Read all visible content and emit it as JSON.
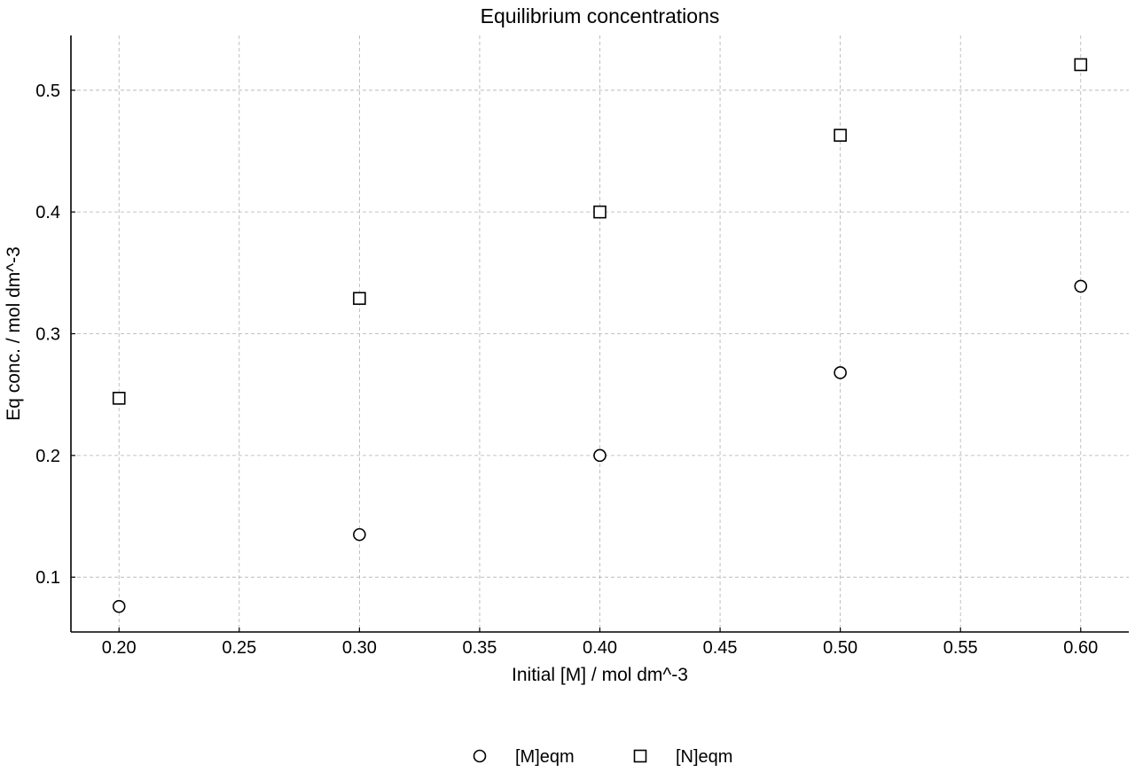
{
  "chart_data": {
    "type": "scatter",
    "title": "Equilibrium concentrations",
    "xlabel": "Initial [M] / mol dm^-3",
    "ylabel": "Eq conc. / mol dm^-3",
    "xlim": [
      0.18,
      0.62
    ],
    "ylim": [
      0.055,
      0.545
    ],
    "x_ticks": [
      "0.20",
      "0.25",
      "0.30",
      "0.35",
      "0.40",
      "0.45",
      "0.50",
      "0.55",
      "0.60"
    ],
    "y_ticks": [
      "0.1",
      "0.2",
      "0.3",
      "0.4",
      "0.5"
    ],
    "grid": true,
    "legend_position": "bottom-center",
    "series": [
      {
        "name": "[M]eqm",
        "marker": "circle",
        "color": "#000000",
        "x": [
          0.2,
          0.3,
          0.4,
          0.5,
          0.6
        ],
        "y": [
          0.076,
          0.135,
          0.2,
          0.268,
          0.339
        ]
      },
      {
        "name": "[N]eqm",
        "marker": "square",
        "color": "#000000",
        "x": [
          0.2,
          0.3,
          0.4,
          0.5,
          0.6
        ],
        "y": [
          0.247,
          0.329,
          0.4,
          0.463,
          0.521
        ]
      }
    ]
  }
}
